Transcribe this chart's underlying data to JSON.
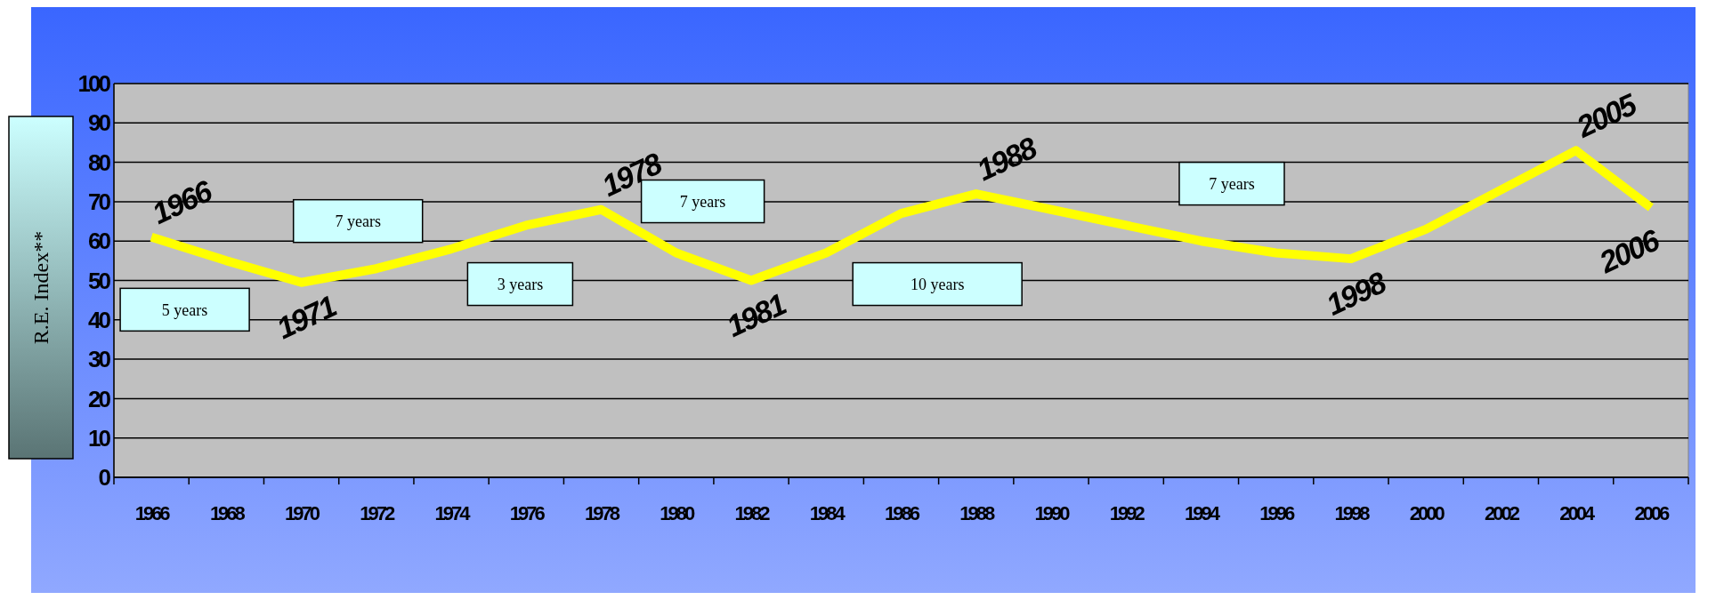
{
  "chart_data": {
    "type": "line",
    "ylabel": "R.E. Index**",
    "categories": [
      "1966",
      "1968",
      "1970",
      "1972",
      "1974",
      "1976",
      "1978",
      "1980",
      "1982",
      "1984",
      "1986",
      "1988",
      "1990",
      "1992",
      "1994",
      "1996",
      "1998",
      "2000",
      "2002",
      "2004",
      "2006"
    ],
    "series": [
      {
        "color": "#ffff00",
        "values": [
          61,
          55,
          49.5,
          53,
          58,
          64,
          68,
          57,
          50,
          57,
          67,
          72,
          68,
          64,
          60,
          57,
          55.5,
          63,
          73,
          83,
          68.5
        ]
      }
    ],
    "ylim": [
      0,
      100
    ],
    "yticks": [
      0,
      10,
      20,
      30,
      40,
      50,
      60,
      70,
      80,
      90,
      100
    ],
    "grid": "y",
    "marker": "none",
    "line_style": "solid",
    "annotations": [
      {
        "text": "1966",
        "x": "1966",
        "y": 61
      },
      {
        "text": "1971",
        "x": "1970",
        "y": 49.5
      },
      {
        "text": "1978",
        "x": "1978",
        "y": 68
      },
      {
        "text": "1981",
        "x": "1982",
        "y": 50
      },
      {
        "text": "1988",
        "x": "1988",
        "y": 72
      },
      {
        "text": "1998",
        "x": "1998",
        "y": 55.5
      },
      {
        "text": "2005",
        "x": "2004",
        "y": 83
      },
      {
        "text": "2006",
        "x": "2006",
        "y": 68.5
      },
      "5 years",
      "7 years",
      "3 years",
      "7 years",
      "10 years",
      "7 years"
    ]
  }
}
